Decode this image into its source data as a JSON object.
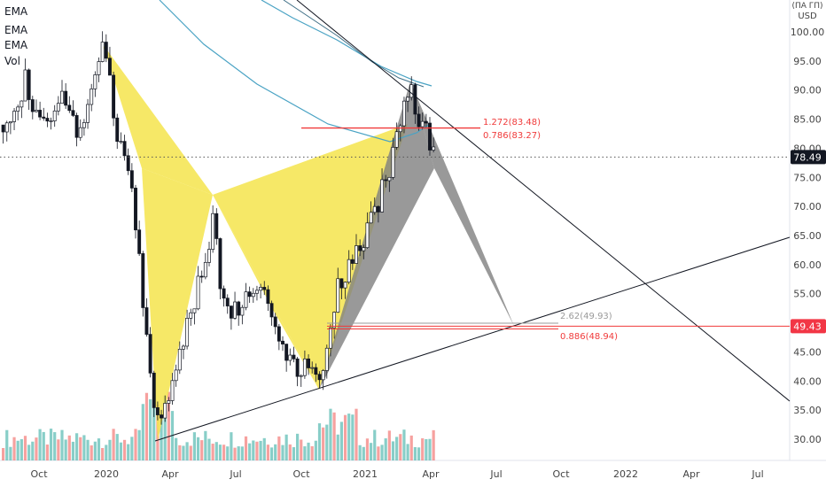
{
  "chart_data": {
    "type": "candlestick",
    "currency": "USD",
    "currency_top": "(ПА ГП)",
    "indicators": [
      "EMA",
      "EMA",
      "EMA",
      "Vol"
    ],
    "y_ticks": [
      "100.00",
      "95.00",
      "90.00",
      "85.00",
      "80.00",
      "75.00",
      "70.00",
      "65.00",
      "60.00",
      "55.00",
      "50.00",
      "45.00",
      "40.00",
      "35.00",
      "30.00"
    ],
    "x_ticks": [
      "Oct",
      "2020",
      "Apr",
      "Jul",
      "Oct",
      "2021",
      "Apr",
      "Jul",
      "Oct",
      "2022",
      "Apr",
      "Jul"
    ],
    "ylim": [
      26.5,
      103.5
    ],
    "price_current": "78.49",
    "price_level": "49.43",
    "fib_labels": {
      "top1": "1.272(83.48)",
      "top2": "0.786(83.27)",
      "bot1": "2.62(49.93)",
      "bot2": "0.886(48.94)"
    },
    "colors": {
      "up": "#26a69a",
      "down": "#ef5350",
      "pattern_yellow": "#f5e44c",
      "pattern_gray": "#7f7f7f",
      "ema_blue": "#4aa3c4",
      "ema_dark": "#3f6f86",
      "red_line": "#f03a3a",
      "label_red_bg": "#f23645",
      "label_dark_bg": "#131722"
    }
  }
}
